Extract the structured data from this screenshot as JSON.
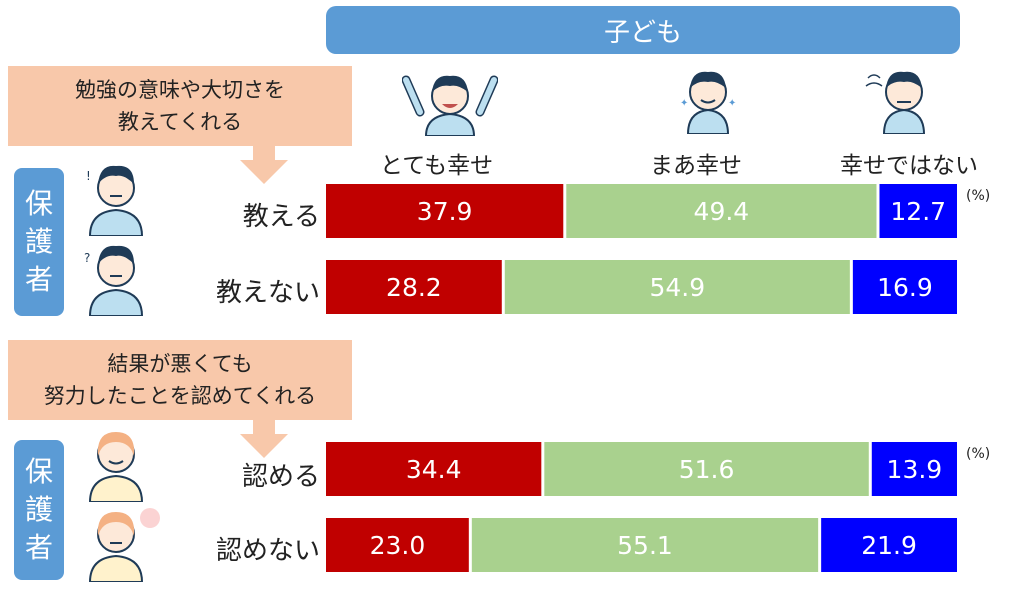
{
  "header": {
    "title": "子ども"
  },
  "columns": [
    "とても幸せ",
    "まあ幸せ",
    "幸せではない"
  ],
  "groups": [
    {
      "callout_lines": [
        "勉強の意味や大切さを",
        "教えてくれる"
      ],
      "side_label": [
        "保",
        "護",
        "者"
      ],
      "percent_label": "(%)"
    },
    {
      "callout_lines": [
        "結果が悪くても",
        "努力したことを認めてくれる"
      ],
      "side_label": [
        "保",
        "護",
        "者"
      ],
      "percent_label": "(%)"
    }
  ],
  "colors": {
    "very_happy": "#c00000",
    "somewhat_happy": "#a9d18e",
    "not_happy": "#0000ff",
    "header": "#5b9bd5",
    "callout": "#f8c8aa"
  },
  "icons": [
    "child-very-happy-icon",
    "child-somewhat-happy-icon",
    "child-not-happy-icon",
    "parent-man-icon",
    "parent-man-icon",
    "parent-woman-icon",
    "parent-woman-icon"
  ],
  "chart_data": {
    "type": "bar",
    "stacked": true,
    "orientation": "horizontal",
    "categories": [
      "教える",
      "教えない",
      "認める",
      "認めない"
    ],
    "series": [
      {
        "name": "とても幸せ",
        "values": [
          37.9,
          28.2,
          34.4,
          23.0
        ]
      },
      {
        "name": "まあ幸せ",
        "values": [
          49.4,
          54.9,
          51.6,
          55.1
        ]
      },
      {
        "name": "幸せではない",
        "values": [
          12.7,
          16.9,
          13.9,
          21.9
        ]
      }
    ],
    "unit": "(%)",
    "xlim": [
      0,
      100
    ]
  }
}
